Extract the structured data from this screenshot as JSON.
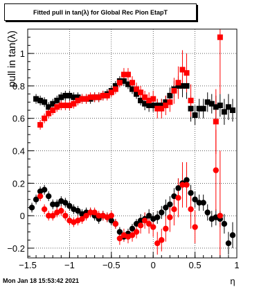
{
  "title": "Fitted pull in tan(λ) for Global Rec Pion EtapT",
  "timestamp": "Mon Jan 18 15:53:42 2021",
  "chart_data": {
    "type": "scatter",
    "title": "Fitted pull in tan(λ) for Global Rec Pion EtapT",
    "xlabel": "η",
    "ylabel": "pull in tan(λ)",
    "xlim": [
      -1.5,
      1.0
    ],
    "ylim": [
      -0.26,
      1.15
    ],
    "xticks": [
      -1.5,
      -1.0,
      -0.5,
      0.0,
      0.5,
      1.0
    ],
    "xtick_labels": [
      "−1.5",
      "−1",
      "−0.5",
      "0",
      "0.5",
      "1"
    ],
    "yticks": [
      -0.2,
      0.0,
      0.2,
      0.4,
      0.6,
      0.8,
      1.0
    ],
    "ytick_labels": [
      "−0.2",
      "0",
      "0.2",
      "0.4",
      "0.6",
      "0.8",
      "1"
    ],
    "grid": true,
    "series": [
      {
        "marker": "square",
        "color": "#000000",
        "xerr": 0.025,
        "x": [
          -1.4,
          -1.35,
          -1.3,
          -1.25,
          -1.2,
          -1.15,
          -1.1,
          -1.05,
          -1.0,
          -0.95,
          -0.9,
          -0.85,
          -0.8,
          -0.75,
          -0.7,
          -0.65,
          -0.6,
          -0.55,
          -0.5,
          -0.45,
          -0.4,
          -0.35,
          -0.3,
          -0.25,
          -0.2,
          -0.15,
          -0.1,
          -0.05,
          0.0,
          0.05,
          0.1,
          0.15,
          0.2,
          0.25,
          0.3,
          0.35,
          0.4,
          0.45,
          0.5,
          0.55,
          0.6,
          0.65,
          0.7,
          0.75,
          0.8,
          0.85,
          0.9,
          0.95
        ],
        "y": [
          0.72,
          0.71,
          0.7,
          0.67,
          0.69,
          0.71,
          0.73,
          0.74,
          0.74,
          0.73,
          0.73,
          0.72,
          0.72,
          0.72,
          0.73,
          0.73,
          0.74,
          0.75,
          0.77,
          0.8,
          0.83,
          0.83,
          0.81,
          0.78,
          0.75,
          0.71,
          0.69,
          0.68,
          0.68,
          0.68,
          0.68,
          0.7,
          0.74,
          0.78,
          0.8,
          0.8,
          0.8,
          0.66,
          0.62,
          0.66,
          0.66,
          0.7,
          0.69,
          0.67,
          0.68,
          0.64,
          0.67,
          0.65
        ],
        "yerr": [
          0.03,
          0.03,
          0.03,
          0.03,
          0.03,
          0.03,
          0.03,
          0.03,
          0.03,
          0.03,
          0.03,
          0.03,
          0.03,
          0.03,
          0.03,
          0.03,
          0.03,
          0.03,
          0.03,
          0.03,
          0.03,
          0.03,
          0.03,
          0.03,
          0.03,
          0.03,
          0.04,
          0.04,
          0.04,
          0.04,
          0.04,
          0.04,
          0.05,
          0.05,
          0.06,
          0.07,
          0.08,
          0.08,
          0.06,
          0.06,
          0.06,
          0.06,
          0.06,
          0.07,
          0.07,
          0.08,
          0.08,
          0.07
        ]
      },
      {
        "marker": "square",
        "color": "#ff0000",
        "xerr": 0.025,
        "x": [
          -1.35,
          -1.3,
          -1.25,
          -1.2,
          -1.15,
          -1.1,
          -1.05,
          -1.0,
          -0.95,
          -0.9,
          -0.85,
          -0.8,
          -0.75,
          -0.7,
          -0.65,
          -0.6,
          -0.55,
          -0.5,
          -0.45,
          -0.4,
          -0.35,
          -0.3,
          -0.25,
          -0.2,
          -0.15,
          -0.1,
          -0.05,
          0.0,
          0.05,
          0.1,
          0.15,
          0.2,
          0.25,
          0.3,
          0.35,
          0.4,
          0.45,
          0.75,
          0.8
        ],
        "y": [
          0.56,
          0.6,
          0.63,
          0.65,
          0.67,
          0.68,
          0.68,
          0.68,
          0.69,
          0.71,
          0.72,
          0.72,
          0.73,
          0.73,
          0.73,
          0.74,
          0.74,
          0.76,
          0.78,
          0.82,
          0.87,
          0.87,
          0.82,
          0.78,
          0.76,
          0.73,
          0.71,
          0.72,
          0.66,
          0.66,
          0.68,
          0.7,
          0.77,
          0.82,
          0.9,
          0.88,
          0.71,
          0.58,
          1.1
        ],
        "yerr": [
          0.03,
          0.03,
          0.03,
          0.03,
          0.03,
          0.03,
          0.03,
          0.03,
          0.03,
          0.03,
          0.03,
          0.03,
          0.03,
          0.03,
          0.03,
          0.03,
          0.03,
          0.03,
          0.03,
          0.03,
          0.04,
          0.04,
          0.04,
          0.04,
          0.04,
          0.04,
          0.05,
          0.05,
          0.06,
          0.06,
          0.06,
          0.06,
          0.08,
          0.1,
          0.12,
          0.12,
          0.1,
          0.2,
          0.35
        ]
      },
      {
        "marker": "circle",
        "color": "#000000",
        "xerr": 0.025,
        "x": [
          -1.45,
          -1.4,
          -1.35,
          -1.3,
          -1.25,
          -1.2,
          -1.15,
          -1.1,
          -1.05,
          -1.0,
          -0.95,
          -0.9,
          -0.85,
          -0.8,
          -0.75,
          -0.7,
          -0.65,
          -0.6,
          -0.55,
          -0.5,
          -0.45,
          -0.4,
          -0.35,
          -0.3,
          -0.25,
          -0.2,
          -0.15,
          -0.1,
          -0.05,
          0.0,
          0.05,
          0.1,
          0.15,
          0.2,
          0.25,
          0.3,
          0.35,
          0.4,
          0.45,
          0.5,
          0.55,
          0.6,
          0.65,
          0.7,
          0.75,
          0.8,
          0.85,
          0.9,
          0.95
        ],
        "y": [
          0.05,
          0.1,
          0.15,
          0.16,
          0.12,
          0.07,
          0.07,
          0.09,
          0.08,
          0.06,
          0.04,
          0.03,
          0.01,
          0.02,
          0.02,
          0.0,
          -0.02,
          0.0,
          -0.01,
          -0.03,
          -0.05,
          -0.1,
          -0.13,
          -0.11,
          -0.08,
          -0.05,
          -0.03,
          -0.02,
          0.0,
          -0.02,
          -0.01,
          0.02,
          0.05,
          0.07,
          0.12,
          0.17,
          0.2,
          0.22,
          0.14,
          0.1,
          0.08,
          0.08,
          0.02,
          -0.02,
          -0.01,
          -0.02,
          -0.05,
          -0.17,
          -0.12
        ],
        "yerr": [
          0.03,
          0.03,
          0.03,
          0.03,
          0.03,
          0.03,
          0.03,
          0.03,
          0.03,
          0.03,
          0.03,
          0.03,
          0.03,
          0.03,
          0.03,
          0.03,
          0.03,
          0.03,
          0.03,
          0.03,
          0.03,
          0.03,
          0.03,
          0.03,
          0.03,
          0.03,
          0.04,
          0.04,
          0.04,
          0.04,
          0.04,
          0.04,
          0.05,
          0.05,
          0.05,
          0.06,
          0.06,
          0.06,
          0.05,
          0.05,
          0.05,
          0.05,
          0.05,
          0.05,
          0.05,
          0.05,
          0.06,
          0.07,
          0.08
        ]
      },
      {
        "marker": "circle",
        "color": "#ff0000",
        "xerr": 0.025,
        "x": [
          -1.35,
          -1.3,
          -1.25,
          -1.2,
          -1.15,
          -1.1,
          -1.05,
          -1.0,
          -0.95,
          -0.9,
          -0.85,
          -0.8,
          -0.75,
          -0.7,
          -0.65,
          -0.6,
          -0.55,
          -0.5,
          -0.45,
          -0.4,
          -0.35,
          -0.3,
          -0.25,
          -0.2,
          -0.15,
          -0.1,
          -0.05,
          0.0,
          0.05,
          0.1,
          0.15,
          0.2,
          0.25,
          0.3,
          0.35,
          0.4,
          0.45,
          0.5,
          0.75,
          0.8
        ],
        "y": [
          0.12,
          0.04,
          0.0,
          0.0,
          0.02,
          0.03,
          0.0,
          -0.03,
          -0.04,
          -0.03,
          -0.02,
          0.0,
          0.02,
          0.02,
          0.0,
          0.0,
          -0.01,
          0.0,
          -0.05,
          -0.14,
          -0.12,
          -0.13,
          -0.12,
          -0.1,
          -0.06,
          -0.03,
          -0.05,
          -0.07,
          -0.17,
          -0.15,
          -0.08,
          -0.01,
          0.04,
          0.11,
          0.19,
          0.19,
          0.04,
          -0.07,
          0.28,
          0.0
        ],
        "yerr": [
          0.03,
          0.03,
          0.03,
          0.03,
          0.03,
          0.03,
          0.03,
          0.03,
          0.03,
          0.03,
          0.03,
          0.03,
          0.03,
          0.03,
          0.03,
          0.03,
          0.03,
          0.03,
          0.03,
          0.04,
          0.04,
          0.04,
          0.04,
          0.04,
          0.05,
          0.05,
          0.06,
          0.06,
          0.07,
          0.07,
          0.08,
          0.09,
          0.1,
          0.12,
          0.14,
          0.14,
          0.12,
          0.1,
          0.25,
          0.4
        ]
      }
    ]
  }
}
